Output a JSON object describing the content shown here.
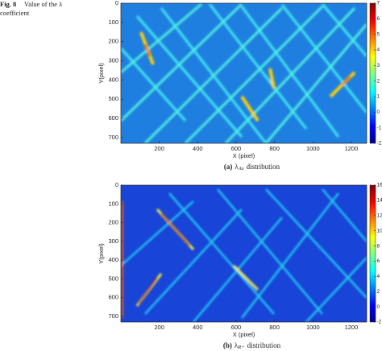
{
  "caption": {
    "label": "Fig. 8",
    "lines": [
      "Value of the λ",
      "coefficient"
    ]
  },
  "panels": [
    {
      "label": "(a)",
      "symbol": "λ",
      "subscript": "Ax",
      "suffix": "distribution",
      "xlabel": "X (pixel)",
      "ylabel": "Y(pixel)",
      "xlim": [
        0,
        1280
      ],
      "xticks": [
        200,
        400,
        600,
        800,
        1000,
        1200
      ],
      "ylim": [
        0,
        730
      ],
      "yticks": [
        0,
        100,
        200,
        300,
        400,
        500,
        600,
        700
      ],
      "clim": [
        -2,
        7
      ],
      "cticks": [
        -2,
        -1,
        0,
        1,
        2,
        3,
        4,
        5,
        6,
        7
      ]
    },
    {
      "label": "(b)",
      "symbol": "λ",
      "subscript": "R+",
      "suffix": "distribution",
      "xlabel": "X (pixel)",
      "ylabel": "Y(pixel)",
      "xlim": [
        0,
        1280
      ],
      "xticks": [
        200,
        400,
        600,
        800,
        1000,
        1200
      ],
      "ylim": [
        0,
        730
      ],
      "yticks": [
        0,
        100,
        200,
        300,
        400,
        500,
        600,
        700
      ],
      "clim": [
        -2,
        16
      ],
      "cticks": [
        -2,
        0,
        2,
        4,
        6,
        8,
        10,
        12,
        14,
        16
      ]
    }
  ]
}
